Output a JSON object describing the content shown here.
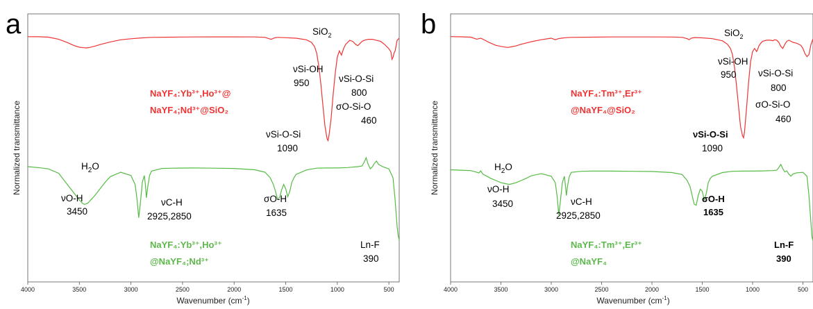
{
  "chart_data": [
    {
      "panel": "a",
      "type": "line",
      "xlabel": "Wavenumber (cm",
      "xlabel_sup": "-1",
      "xlabel_close": ")",
      "ylabel": "Normalized transmittance",
      "xlim": [
        4000,
        400
      ],
      "x_reversed": true,
      "xticks": [
        "4000",
        "3500",
        "3000",
        "2500",
        "2000",
        "1500",
        "1000",
        "500"
      ],
      "series": [
        {
          "name": "NaYF4:Yb3+,Ho3+@NaYF4;Nd3+@SiO2",
          "color": "#ee3333",
          "x": [
            4000,
            3900,
            3800,
            3700,
            3620,
            3550,
            3500,
            3460,
            3430,
            3400,
            3350,
            3300,
            3200,
            3100,
            3000,
            2900,
            2800,
            2600,
            2400,
            2200,
            2000,
            1800,
            1700,
            1660,
            1640,
            1610,
            1580,
            1500,
            1400,
            1300,
            1250,
            1220,
            1200,
            1180,
            1160,
            1140,
            1120,
            1100,
            1090,
            1080,
            1060,
            1040,
            1020,
            1000,
            980,
            960,
            950,
            940,
            920,
            900,
            880,
            850,
            820,
            800,
            780,
            760,
            740,
            700,
            660,
            620,
            580,
            540,
            500,
            480,
            470,
            460,
            450,
            440,
            420,
            400
          ],
          "y": [
            99.5,
            99.4,
            99,
            97,
            94,
            91,
            89.5,
            89,
            88.8,
            89.3,
            90.5,
            92,
            94.5,
            96.5,
            97.5,
            98.3,
            98.8,
            99,
            99.2,
            99.3,
            99.3,
            99.2,
            98.8,
            97.5,
            97,
            98.3,
            98.8,
            98.5,
            98,
            96.5,
            94,
            90,
            84,
            72,
            55,
            35,
            15,
            3,
            1,
            6,
            22,
            45,
            65,
            80,
            86,
            82,
            85,
            88,
            92,
            94,
            96,
            95,
            92,
            91,
            93,
            95,
            96,
            97,
            97,
            96,
            95,
            92,
            88,
            85,
            78,
            80,
            84,
            86,
            96,
            98
          ]
        },
        {
          "name": "NaYF4:Yb3+,Ho3+@NaYF4;Nd3+",
          "color": "#55bb44",
          "x": [
            4000,
            3900,
            3800,
            3700,
            3650,
            3600,
            3550,
            3500,
            3470,
            3450,
            3420,
            3400,
            3350,
            3300,
            3250,
            3200,
            3100,
            3000,
            2960,
            2940,
            2925,
            2910,
            2890,
            2870,
            2860,
            2850,
            2840,
            2820,
            2800,
            2700,
            2600,
            2400,
            2200,
            2000,
            1800,
            1700,
            1650,
            1620,
            1600,
            1580,
            1560,
            1540,
            1520,
            1500,
            1480,
            1460,
            1440,
            1420,
            1400,
            1300,
            1200,
            1100,
            1000,
            900,
            800,
            760,
            740,
            720,
            700,
            680,
            660,
            640,
            620,
            600,
            560,
            500,
            460,
            440,
            420,
            410,
            400
          ],
          "y": [
            45,
            44.6,
            44,
            42,
            39,
            36,
            33,
            30,
            28.5,
            28,
            28.5,
            29.5,
            32,
            35,
            38,
            40.5,
            42.5,
            41,
            37,
            30,
            22,
            28,
            38,
            41,
            37,
            31,
            35,
            41,
            43,
            44.2,
            44.3,
            44.4,
            44.3,
            44.2,
            43.6,
            42.5,
            40,
            37,
            34,
            30.5,
            31,
            34.5,
            37,
            35,
            31.5,
            34,
            38,
            40,
            41.5,
            43.5,
            44.3,
            44.4,
            44.4,
            44.6,
            45,
            45.3,
            47,
            49,
            46,
            44,
            45,
            46.5,
            47.5,
            46,
            45,
            44,
            40,
            30,
            18,
            14,
            12
          ]
        }
      ],
      "labels": {
        "sio2_main": "SiO",
        "sio2_sub": "2",
        "h2o_main": "H",
        "h2o_sub": "2",
        "h2o_tail": "O",
        "v_si_oh": "νSi-OH",
        "v_si_oh_val": "950",
        "v_si_o_si_800": "νSi-O-Si",
        "v_si_o_si_800_val": "800",
        "s_o_si_o": "σO-Si-O",
        "s_o_si_o_val": "460",
        "v_si_o_si_1090": "νSi-O-Si",
        "v_si_o_si_1090_val": "1090",
        "v_o_h": "νO-H",
        "v_o_h_val": "3450",
        "v_c_h": "νC-H",
        "v_c_h_val": "2925,2850",
        "s_o_h": "σO-H",
        "s_o_h_val": "1635",
        "ln_f": "Ln-F",
        "ln_f_val": "390",
        "red_l1": "NaYF₄:Yb³⁺,Ho³⁺@",
        "red_l2": "NaYF₄;Nd³⁺@SiO₂",
        "green_l1": "NaYF₄:Yb³⁺,Ho³⁺",
        "green_l2": "@NaYF₄;Nd³⁺"
      }
    },
    {
      "panel": "b",
      "type": "line",
      "xlabel": "Wavenumber (cm",
      "xlabel_sup": "-1",
      "xlabel_close": ")",
      "ylabel": "Normalized transmittance",
      "xlim": [
        4000,
        400
      ],
      "x_reversed": true,
      "xticks": [
        "4000",
        "3500",
        "3000",
        "2500",
        "2000",
        "1500",
        "1000",
        "500"
      ],
      "series": [
        {
          "name": "NaYF4:Tm3+,Er3+@NaYF4@SiO2",
          "color": "#ee3333",
          "x": [
            4000,
            3900,
            3800,
            3740,
            3700,
            3660,
            3620,
            3550,
            3500,
            3460,
            3430,
            3400,
            3350,
            3300,
            3200,
            3100,
            3000,
            2960,
            2930,
            2900,
            2850,
            2800,
            2600,
            2400,
            2200,
            2000,
            1800,
            1700,
            1650,
            1630,
            1610,
            1580,
            1500,
            1400,
            1300,
            1250,
            1220,
            1200,
            1180,
            1160,
            1140,
            1120,
            1100,
            1090,
            1080,
            1060,
            1040,
            1020,
            1000,
            980,
            960,
            950,
            940,
            920,
            900,
            860,
            820,
            800,
            780,
            760,
            740,
            720,
            700,
            680,
            660,
            640,
            600,
            560,
            520,
            500,
            480,
            460,
            440,
            420,
            400
          ],
          "y": [
            99.5,
            99.3,
            99,
            97,
            98,
            96,
            94,
            91,
            90,
            89.3,
            89,
            89.5,
            90.5,
            92,
            94.5,
            96.5,
            98,
            96.5,
            97.5,
            98,
            98.5,
            98.8,
            99,
            99.2,
            99.2,
            99.2,
            99.1,
            98.8,
            97.5,
            96.5,
            98,
            98.6,
            98.3,
            97.5,
            95.5,
            92,
            88,
            82,
            70,
            52,
            32,
            12,
            3,
            1,
            7,
            30,
            55,
            75,
            85,
            88,
            85,
            87,
            90,
            93,
            95,
            96,
            96,
            95.5,
            96.5,
            96,
            94,
            90,
            88,
            92,
            95,
            96,
            94,
            93,
            91,
            88,
            83,
            80,
            82,
            92,
            97
          ]
        },
        {
          "name": "NaYF4:Tm3+,Er3+@NaYF4",
          "color": "#55bb44",
          "x": [
            4000,
            3900,
            3800,
            3750,
            3720,
            3700,
            3680,
            3640,
            3600,
            3550,
            3500,
            3450,
            3420,
            3400,
            3350,
            3300,
            3250,
            3200,
            3100,
            3000,
            2960,
            2940,
            2925,
            2910,
            2890,
            2870,
            2860,
            2850,
            2840,
            2820,
            2800,
            2700,
            2600,
            2400,
            2200,
            2000,
            1800,
            1700,
            1650,
            1620,
            1600,
            1580,
            1560,
            1540,
            1520,
            1500,
            1480,
            1460,
            1440,
            1420,
            1400,
            1300,
            1200,
            1100,
            1000,
            900,
            800,
            760,
            740,
            720,
            700,
            680,
            660,
            640,
            620,
            600,
            560,
            500,
            460,
            440,
            420,
            410,
            400
          ],
          "y": [
            45,
            44.8,
            44.6,
            44,
            43.5,
            44.5,
            43,
            42,
            41,
            40,
            39,
            38.5,
            38.2,
            38.4,
            39,
            40,
            41,
            42.2,
            43.2,
            42,
            39,
            32,
            24,
            30,
            39,
            42,
            38,
            33,
            37,
            42,
            43.8,
            44.3,
            44.4,
            44.4,
            44.3,
            44.2,
            43.7,
            42.8,
            40,
            37,
            33,
            29,
            28.5,
            33,
            36,
            35,
            31,
            34,
            39,
            41,
            42,
            43.7,
            44.3,
            44.4,
            44.4,
            44.5,
            44.6,
            44.8,
            46,
            47.5,
            45.5,
            44,
            44.5,
            43,
            42,
            43,
            43.6,
            43.8,
            42,
            33,
            20,
            14,
            12
          ]
        }
      ],
      "labels": {
        "sio2_main": "SiO",
        "sio2_sub": "2",
        "h2o_main": "H",
        "h2o_sub": "2",
        "h2o_tail": "O",
        "v_si_oh": "νSi-OH",
        "v_si_oh_val": "950",
        "v_si_o_si_800": "νSi-O-Si",
        "v_si_o_si_800_val": "800",
        "s_o_si_o": "σO-Si-O",
        "s_o_si_o_val": "460",
        "v_si_o_si_1090": "νSi-O-Si",
        "v_si_o_si_1090_val": "1090",
        "v_o_h": "νO-H",
        "v_o_h_val": "3450",
        "v_c_h": "νC-H",
        "v_c_h_val": "2925,2850",
        "s_o_h": "σO-H",
        "s_o_h_val": "1635",
        "ln_f": "Ln-F",
        "ln_f_val": "390",
        "red_l1": "NaYF₄:Tm³⁺,Er³⁺",
        "red_l2": "@NaYF₄@SiO₂",
        "green_l1": "NaYF₄:Tm³⁺,Er³⁺",
        "green_l2": "@NaYF₄"
      }
    }
  ],
  "panel_letters": [
    "a",
    "b"
  ]
}
